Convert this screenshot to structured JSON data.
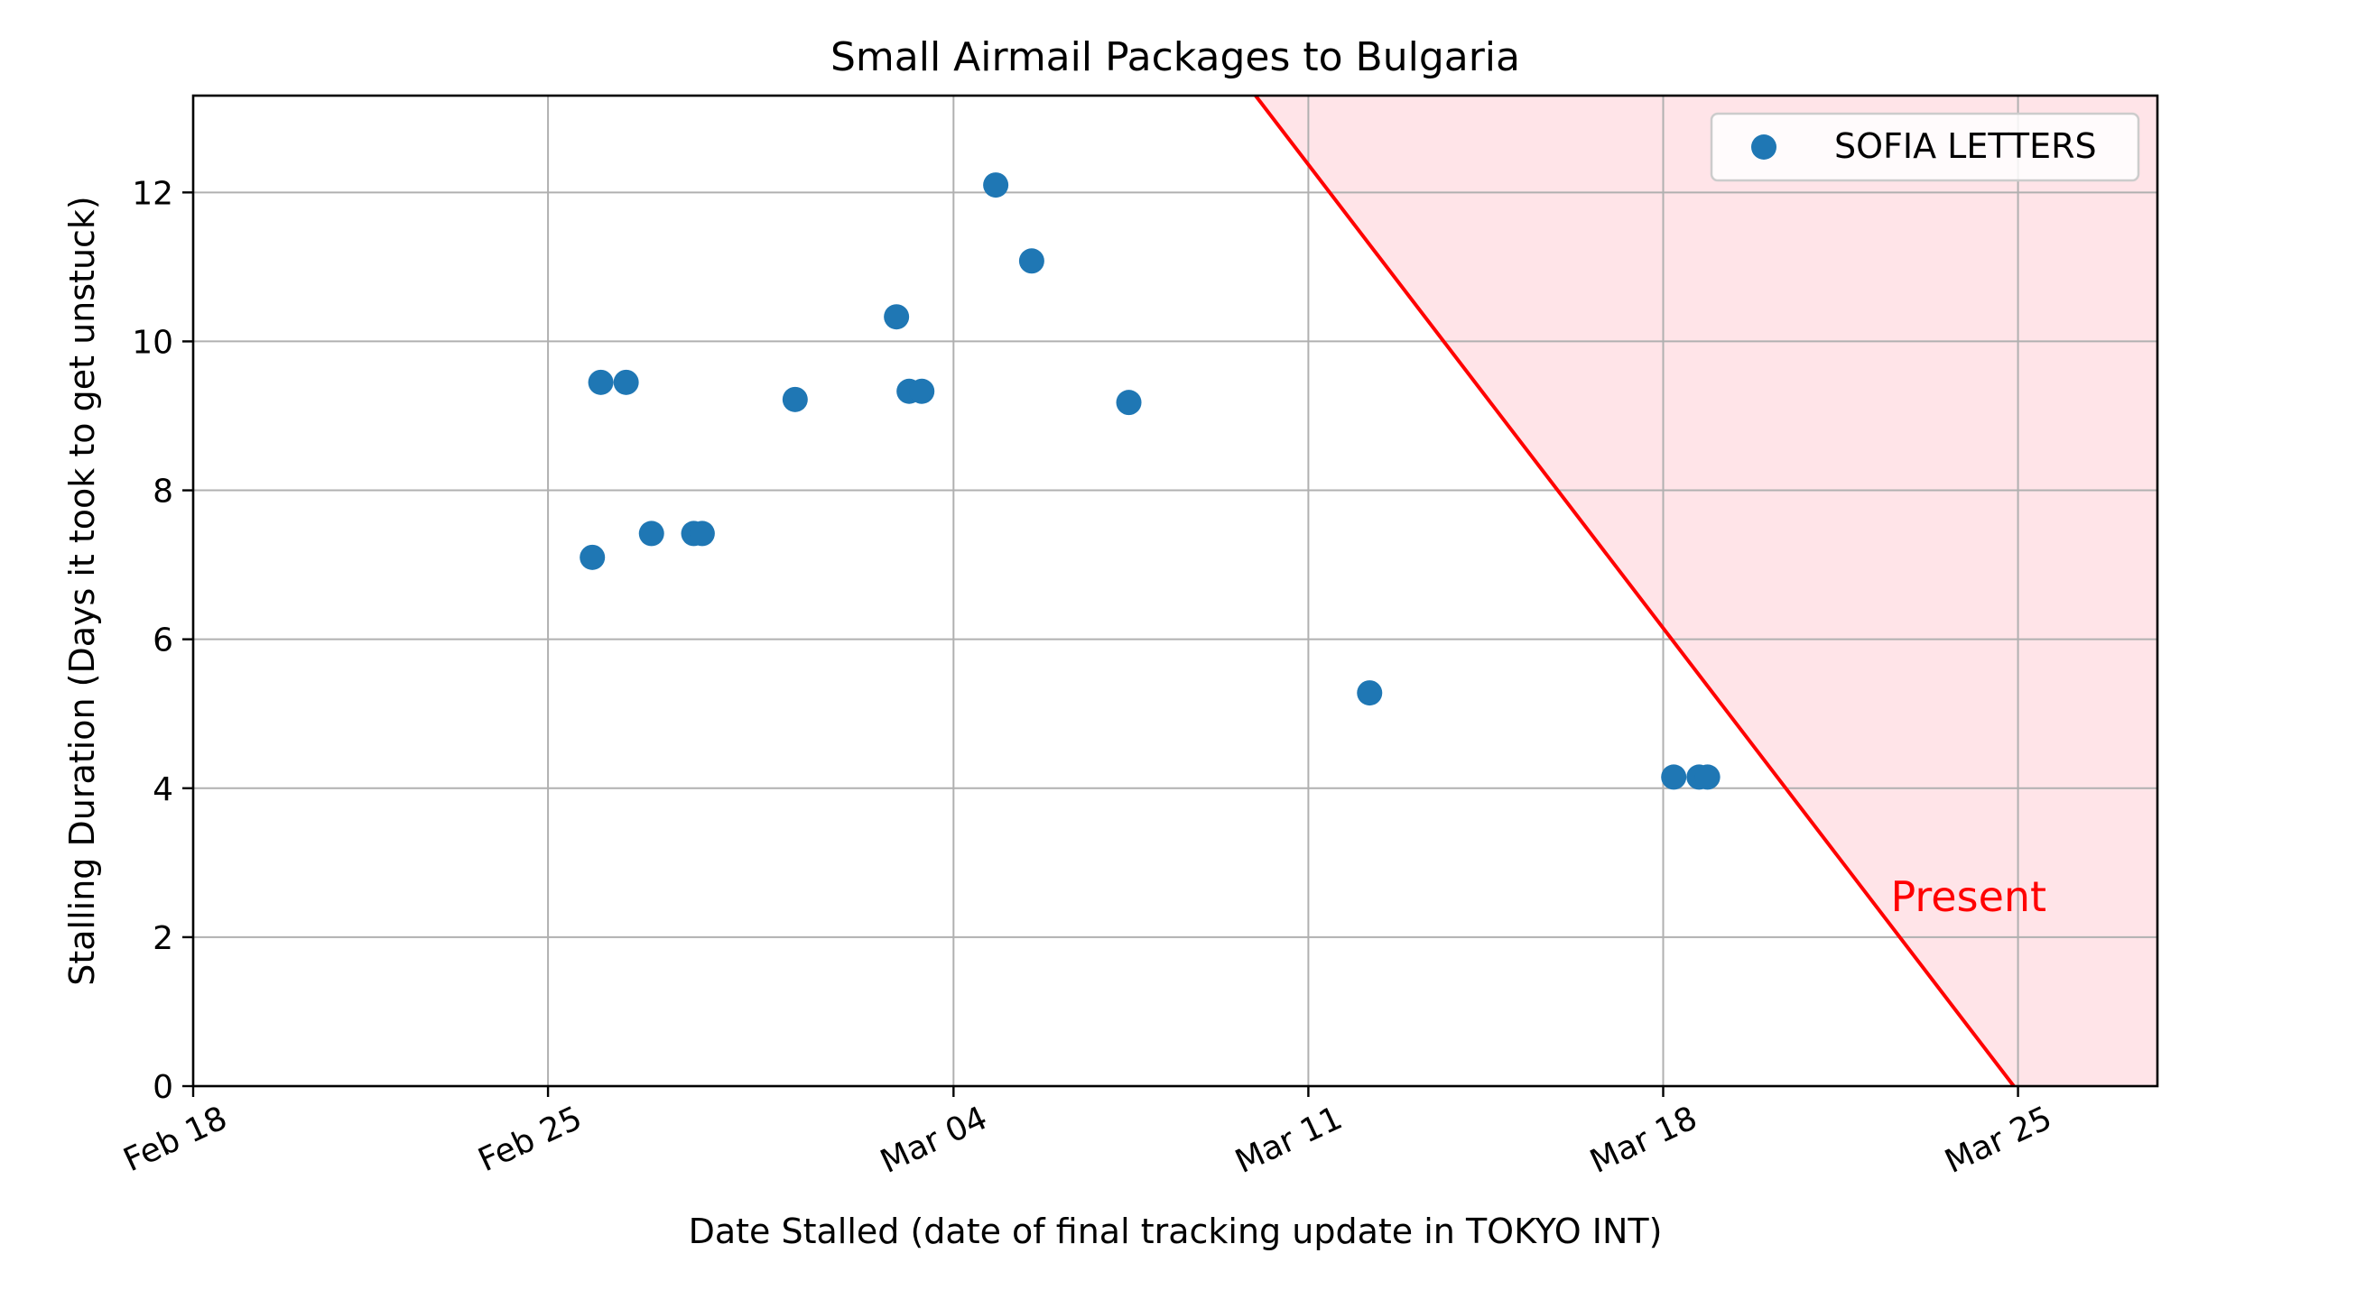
{
  "chart_data": {
    "type": "scatter",
    "title": "Small Airmail Packages to Bulgaria",
    "xlabel": "Date Stalled (date of final tracking update in TOKYO INT)",
    "ylabel": "Stalling Duration (Days it took to get unstuck)",
    "x_axis": {
      "type": "date",
      "range": [
        "2024-02-18",
        "2024-03-27T18:00"
      ],
      "ticks": [
        {
          "date": "2024-02-18",
          "label": "Feb 18"
        },
        {
          "date": "2024-02-25",
          "label": "Feb 25"
        },
        {
          "date": "2024-03-04",
          "label": "Mar 04"
        },
        {
          "date": "2024-03-11",
          "label": "Mar 11"
        },
        {
          "date": "2024-03-18",
          "label": "Mar 18"
        },
        {
          "date": "2024-03-25",
          "label": "Mar 25"
        }
      ]
    },
    "y_axis": {
      "range": [
        0,
        13.3
      ],
      "ticks": [
        0,
        2,
        4,
        6,
        8,
        10,
        12
      ]
    },
    "grid": true,
    "legend": {
      "position": "top-right"
    },
    "series": [
      {
        "name": "SOFIA LETTERS",
        "color": "#1f77b4",
        "points": [
          {
            "x": "2024-02-25T21:00",
            "y": 7.1
          },
          {
            "x": "2024-02-26T01:00",
            "y": 9.45
          },
          {
            "x": "2024-02-26T13:00",
            "y": 9.45
          },
          {
            "x": "2024-02-27T01:00",
            "y": 7.42
          },
          {
            "x": "2024-02-27T21:00",
            "y": 7.42
          },
          {
            "x": "2024-02-28T01:00",
            "y": 7.42
          },
          {
            "x": "2024-02-29T21:00",
            "y": 9.22
          },
          {
            "x": "2024-03-02T21:00",
            "y": 10.33
          },
          {
            "x": "2024-03-03T03:00",
            "y": 9.33
          },
          {
            "x": "2024-03-03T09:00",
            "y": 9.33
          },
          {
            "x": "2024-03-04T20:00",
            "y": 12.1
          },
          {
            "x": "2024-03-05T13:00",
            "y": 11.08
          },
          {
            "x": "2024-03-07T11:00",
            "y": 9.18
          },
          {
            "x": "2024-03-12T05:00",
            "y": 5.28
          },
          {
            "x": "2024-03-18T05:00",
            "y": 4.15
          },
          {
            "x": "2024-03-18T17:00",
            "y": 4.15
          },
          {
            "x": "2024-03-18T21:00",
            "y": 4.15
          }
        ]
      }
    ],
    "annotations": [
      {
        "type": "line",
        "label": "Present",
        "color": "#ff0000",
        "from": {
          "x": "2024-03-09T23:00",
          "y": 13.3
        },
        "to": {
          "x": "2024-03-24T22:00",
          "y": 0
        },
        "fill_right_color": "#ffe4e8"
      }
    ]
  }
}
